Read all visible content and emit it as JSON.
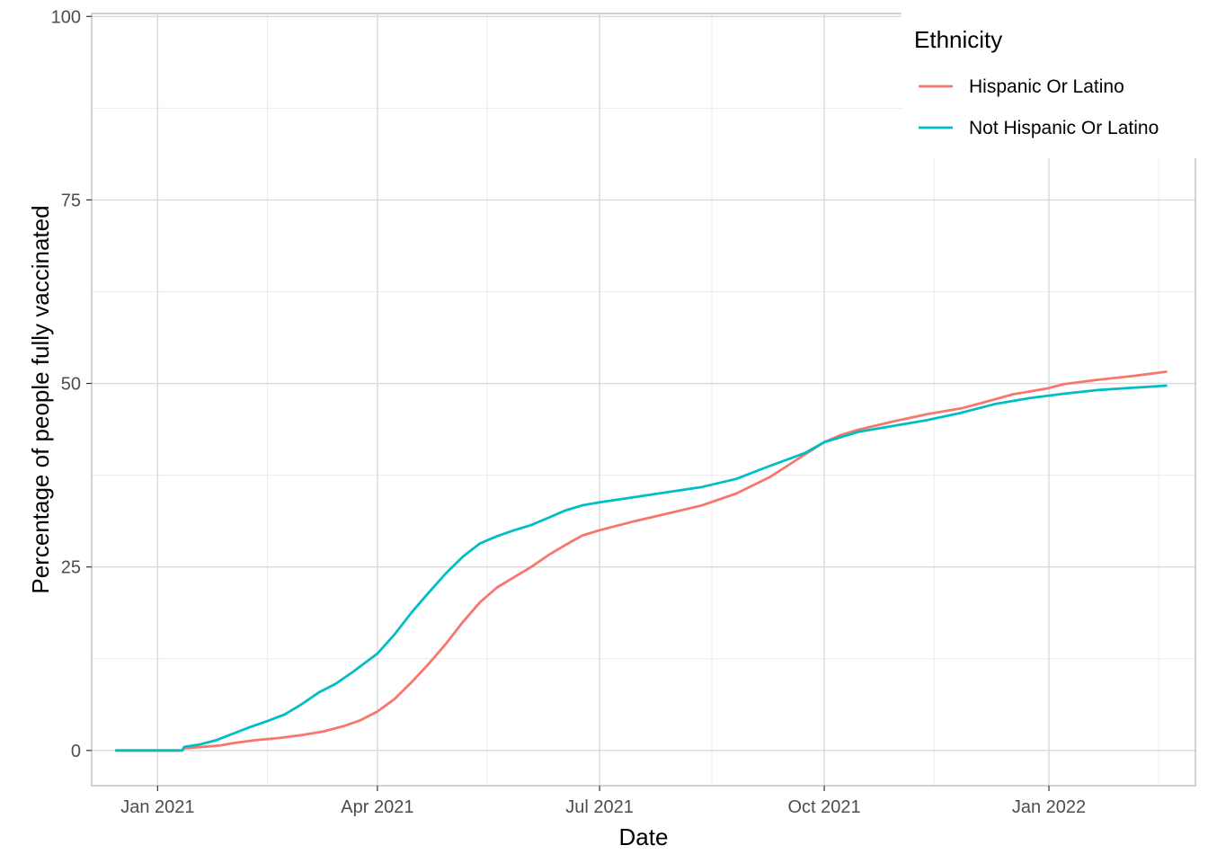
{
  "chart_data": {
    "type": "line",
    "title": "",
    "xlabel": "Date",
    "ylabel": "Percentage of people fully vaccinated",
    "x_type": "date",
    "xlim": [
      "2020-12-05",
      "2022-03-02"
    ],
    "ylim": [
      -4.8,
      100.4
    ],
    "x_ticks": [
      {
        "date": "2021-01-01",
        "label": "Jan 2021"
      },
      {
        "date": "2021-04-01",
        "label": "Apr 2021"
      },
      {
        "date": "2021-07-01",
        "label": "Jul 2021"
      },
      {
        "date": "2021-10-01",
        "label": "Oct 2021"
      },
      {
        "date": "2022-01-01",
        "label": "Jan 2022"
      }
    ],
    "x_minor_ticks": [
      "2021-02-15",
      "2021-05-16",
      "2021-08-16",
      "2021-11-15",
      "2022-02-15"
    ],
    "y_ticks": [
      0,
      25,
      50,
      75,
      100
    ],
    "y_minor_ticks": [
      12.5,
      37.5,
      62.5,
      87.5
    ],
    "grid": true,
    "legend": {
      "title": "Ethnicity",
      "position": "top-right"
    },
    "series": [
      {
        "name": "Hispanic Or Latino",
        "color": "#F8766D",
        "points": [
          [
            "2020-12-15",
            0
          ],
          [
            "2020-12-25",
            0
          ],
          [
            "2021-01-05",
            0
          ],
          [
            "2021-01-11",
            0
          ],
          [
            "2021-01-12",
            0.3
          ],
          [
            "2021-01-20",
            0.5
          ],
          [
            "2021-01-27",
            0.7
          ],
          [
            "2021-02-01",
            1.0
          ],
          [
            "2021-02-10",
            1.4
          ],
          [
            "2021-02-20",
            1.7
          ],
          [
            "2021-03-01",
            2.1
          ],
          [
            "2021-03-10",
            2.6
          ],
          [
            "2021-03-18",
            3.3
          ],
          [
            "2021-03-25",
            4.1
          ],
          [
            "2021-04-01",
            5.3
          ],
          [
            "2021-04-08",
            7.0
          ],
          [
            "2021-04-15",
            9.3
          ],
          [
            "2021-04-22",
            11.8
          ],
          [
            "2021-04-29",
            14.5
          ],
          [
            "2021-05-06",
            17.5
          ],
          [
            "2021-05-13",
            20.2
          ],
          [
            "2021-05-20",
            22.2
          ],
          [
            "2021-05-27",
            23.6
          ],
          [
            "2021-06-03",
            25.0
          ],
          [
            "2021-06-10",
            26.6
          ],
          [
            "2021-06-17",
            28.0
          ],
          [
            "2021-06-24",
            29.3
          ],
          [
            "2021-07-01",
            30.0
          ],
          [
            "2021-07-15",
            31.2
          ],
          [
            "2021-07-29",
            32.3
          ],
          [
            "2021-08-12",
            33.4
          ],
          [
            "2021-08-26",
            35.0
          ],
          [
            "2021-09-09",
            37.3
          ],
          [
            "2021-09-16",
            38.8
          ],
          [
            "2021-09-23",
            40.3
          ],
          [
            "2021-10-01",
            42.0
          ],
          [
            "2021-10-08",
            43.0
          ],
          [
            "2021-10-15",
            43.7
          ],
          [
            "2021-10-29",
            44.8
          ],
          [
            "2021-11-12",
            45.8
          ],
          [
            "2021-11-26",
            46.6
          ],
          [
            "2021-12-03",
            47.2
          ],
          [
            "2021-12-17",
            48.5
          ],
          [
            "2021-12-31",
            49.3
          ],
          [
            "2022-01-07",
            49.9
          ],
          [
            "2022-01-21",
            50.5
          ],
          [
            "2022-02-04",
            51.0
          ],
          [
            "2022-02-18",
            51.6
          ]
        ]
      },
      {
        "name": "Not Hispanic Or Latino",
        "color": "#00BFC4",
        "points": [
          [
            "2020-12-15",
            0
          ],
          [
            "2020-12-25",
            0
          ],
          [
            "2021-01-05",
            0
          ],
          [
            "2021-01-11",
            0
          ],
          [
            "2021-01-12",
            0.5
          ],
          [
            "2021-01-18",
            0.8
          ],
          [
            "2021-01-25",
            1.4
          ],
          [
            "2021-02-01",
            2.3
          ],
          [
            "2021-02-08",
            3.2
          ],
          [
            "2021-02-15",
            4.0
          ],
          [
            "2021-02-22",
            4.9
          ],
          [
            "2021-03-01",
            6.3
          ],
          [
            "2021-03-08",
            7.9
          ],
          [
            "2021-03-15",
            9.1
          ],
          [
            "2021-03-22",
            10.7
          ],
          [
            "2021-04-01",
            13.2
          ],
          [
            "2021-04-08",
            15.8
          ],
          [
            "2021-04-15",
            18.8
          ],
          [
            "2021-04-22",
            21.5
          ],
          [
            "2021-04-29",
            24.1
          ],
          [
            "2021-05-06",
            26.4
          ],
          [
            "2021-05-13",
            28.2
          ],
          [
            "2021-05-20",
            29.2
          ],
          [
            "2021-05-27",
            30.0
          ],
          [
            "2021-06-03",
            30.7
          ],
          [
            "2021-06-10",
            31.7
          ],
          [
            "2021-06-17",
            32.7
          ],
          [
            "2021-06-24",
            33.4
          ],
          [
            "2021-07-01",
            33.8
          ],
          [
            "2021-07-15",
            34.5
          ],
          [
            "2021-07-29",
            35.2
          ],
          [
            "2021-08-12",
            35.9
          ],
          [
            "2021-08-26",
            37.0
          ],
          [
            "2021-09-09",
            38.8
          ],
          [
            "2021-09-23",
            40.5
          ],
          [
            "2021-10-01",
            42.0
          ],
          [
            "2021-10-15",
            43.4
          ],
          [
            "2021-10-29",
            44.2
          ],
          [
            "2021-11-12",
            45.0
          ],
          [
            "2021-11-26",
            46.0
          ],
          [
            "2021-12-10",
            47.2
          ],
          [
            "2021-12-24",
            48.0
          ],
          [
            "2022-01-07",
            48.6
          ],
          [
            "2022-01-21",
            49.1
          ],
          [
            "2022-02-04",
            49.4
          ],
          [
            "2022-02-18",
            49.7
          ]
        ]
      }
    ]
  }
}
